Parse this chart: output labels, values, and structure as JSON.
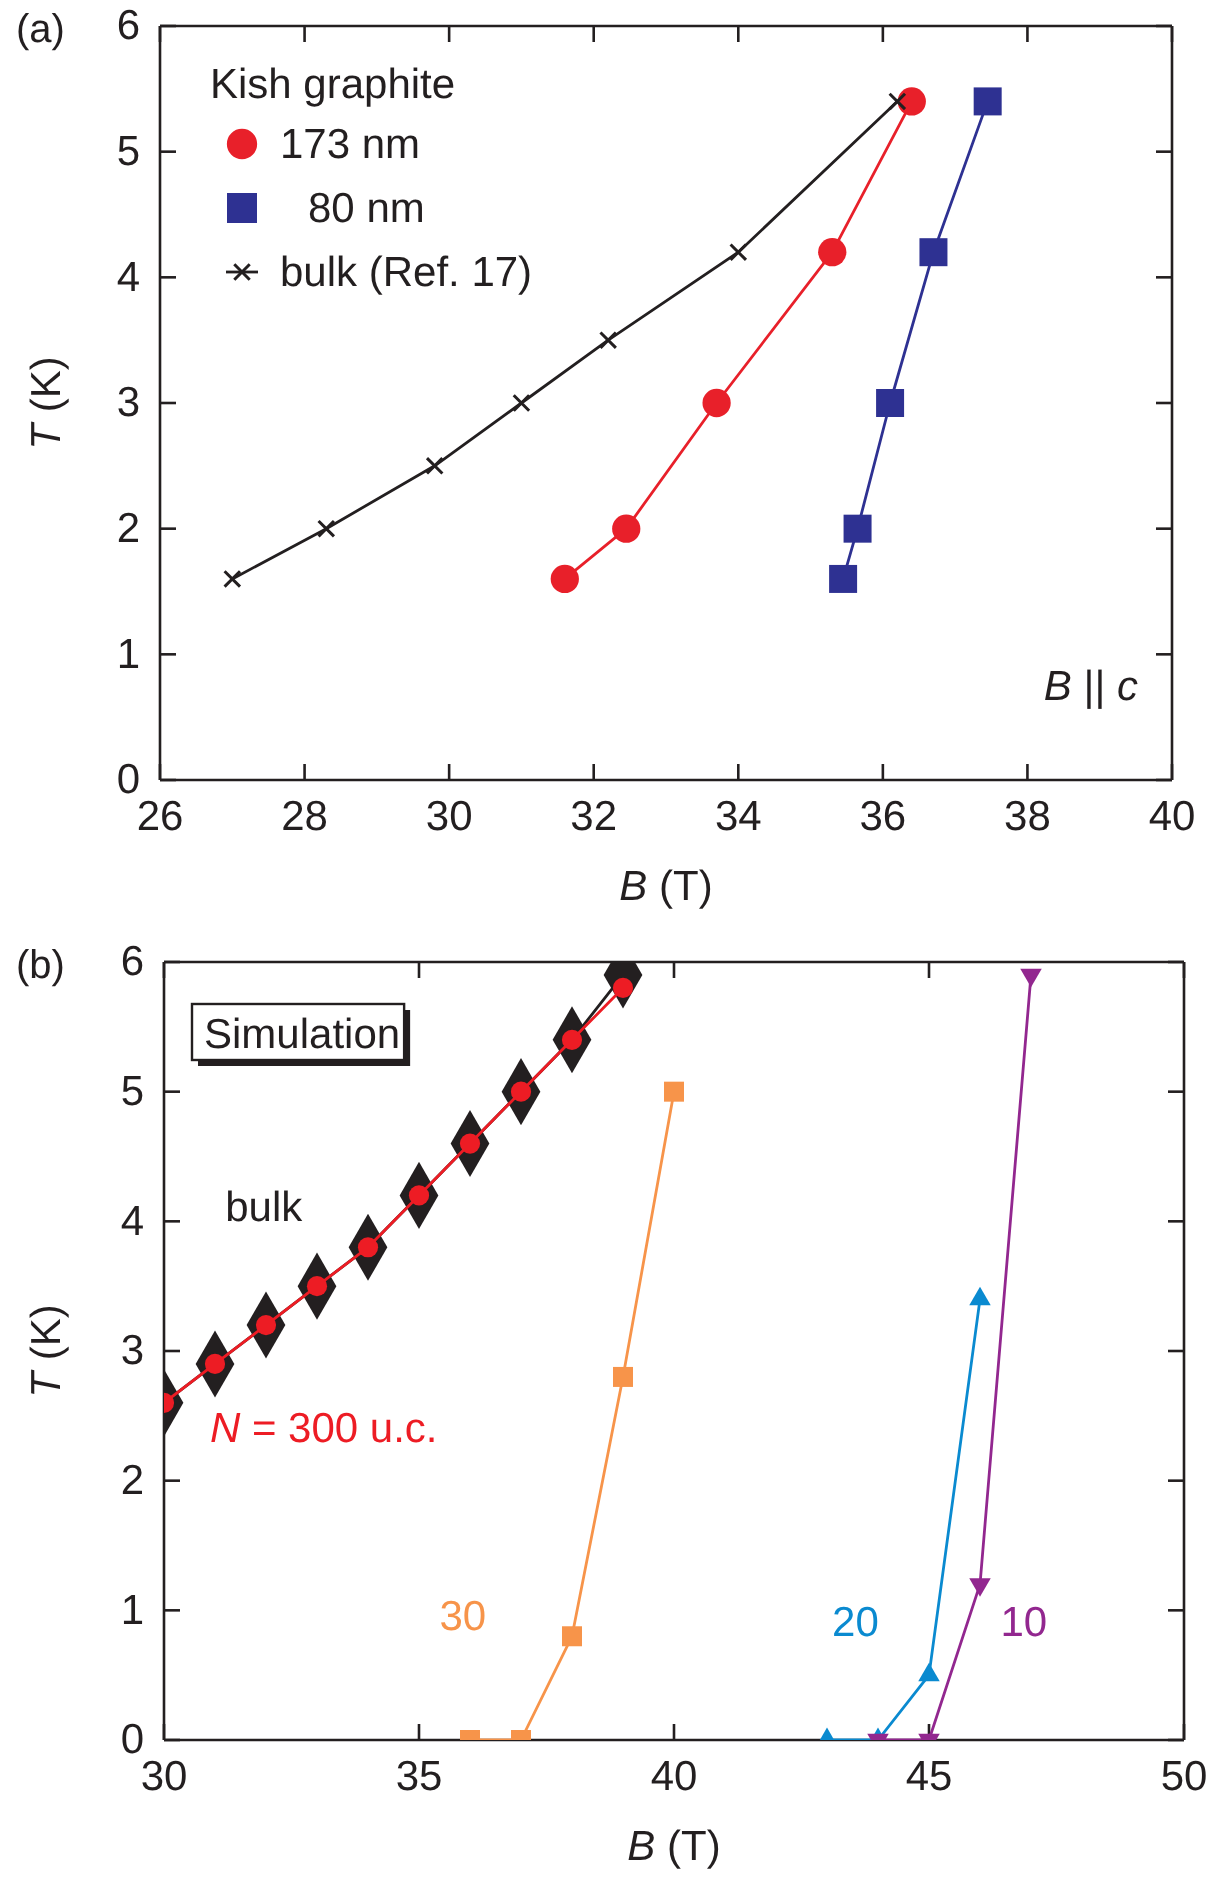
{
  "chart_data": [
    {
      "type": "line",
      "xlabel": "B (T)",
      "ylabel": "T (K)",
      "xlim": [
        26,
        40
      ],
      "xticks": [
        26,
        28,
        30,
        32,
        34,
        36,
        38,
        40
      ],
      "ylim": [
        0,
        6
      ],
      "yticks": [
        0,
        1,
        2,
        3,
        4,
        5,
        6
      ],
      "grid": false,
      "legend": "top left",
      "legend_title": "Kish graphite",
      "annotations": [
        "(a)",
        "B || c"
      ],
      "series": [
        {
          "name": "173 nm",
          "color": "#e8202a",
          "marker": "circle",
          "x": [
            31.6,
            32.45,
            33.7,
            35.3,
            36.4
          ],
          "values": [
            1.6,
            2,
            3,
            4.2,
            5.4
          ]
        },
        {
          "name": "80 nm",
          "color": "#2e3192",
          "marker": "square",
          "x": [
            35.45,
            35.65,
            36.1,
            36.7,
            37.45
          ],
          "values": [
            1.6,
            2,
            3,
            4.2,
            5.4
          ]
        },
        {
          "name": "bulk (Ref. 17)",
          "color": "#231f20",
          "marker": "cross",
          "x": [
            27,
            28.3,
            29.8,
            31,
            32.2,
            34,
            36.2
          ],
          "values": [
            1.6,
            2,
            2.5,
            3,
            3.5,
            4.2,
            5.4
          ]
        }
      ]
    },
    {
      "type": "line",
      "xlabel": "B (T)",
      "ylabel": "T (K)",
      "xlim": [
        30,
        50
      ],
      "xticks": [
        30,
        35,
        40,
        45,
        50
      ],
      "ylim": [
        0,
        6
      ],
      "yticks": [
        0,
        1,
        2,
        3,
        4,
        5,
        6
      ],
      "grid": false,
      "legend": false,
      "annotations": [
        "(b)",
        "Simulation"
      ],
      "series": [
        {
          "name": "bulk",
          "color": "#231f20",
          "marker": "diamond",
          "x": [
            30,
            31,
            32,
            33,
            34,
            35,
            36,
            37,
            38,
            39
          ],
          "values": [
            2.6,
            2.9,
            3.2,
            3.5,
            3.8,
            4.2,
            4.6,
            5.0,
            5.4,
            5.9
          ]
        },
        {
          "name": "N = 300 u.c.",
          "color": "#ed1c24",
          "marker": "circle",
          "x": [
            30,
            31,
            32,
            33,
            34,
            35,
            36,
            37,
            38,
            39
          ],
          "values": [
            2.6,
            2.9,
            3.2,
            3.5,
            3.8,
            4.2,
            4.6,
            5.0,
            5.4,
            5.8
          ]
        },
        {
          "name": "30",
          "color": "#f7944a",
          "marker": "square",
          "x": [
            36,
            37,
            38,
            39,
            40
          ],
          "values": [
            0,
            0,
            0.8,
            2.8,
            5.0
          ]
        },
        {
          "name": "20",
          "color": "#0a8ad0",
          "marker": "triangle",
          "x": [
            43,
            44,
            45,
            46
          ],
          "values": [
            0,
            0,
            0.5,
            3.4
          ]
        },
        {
          "name": "10",
          "color": "#92278f",
          "marker": "triangle",
          "x": [
            44,
            45,
            46,
            47
          ],
          "values": [
            0,
            0,
            1.2,
            5.9
          ]
        }
      ]
    }
  ]
}
